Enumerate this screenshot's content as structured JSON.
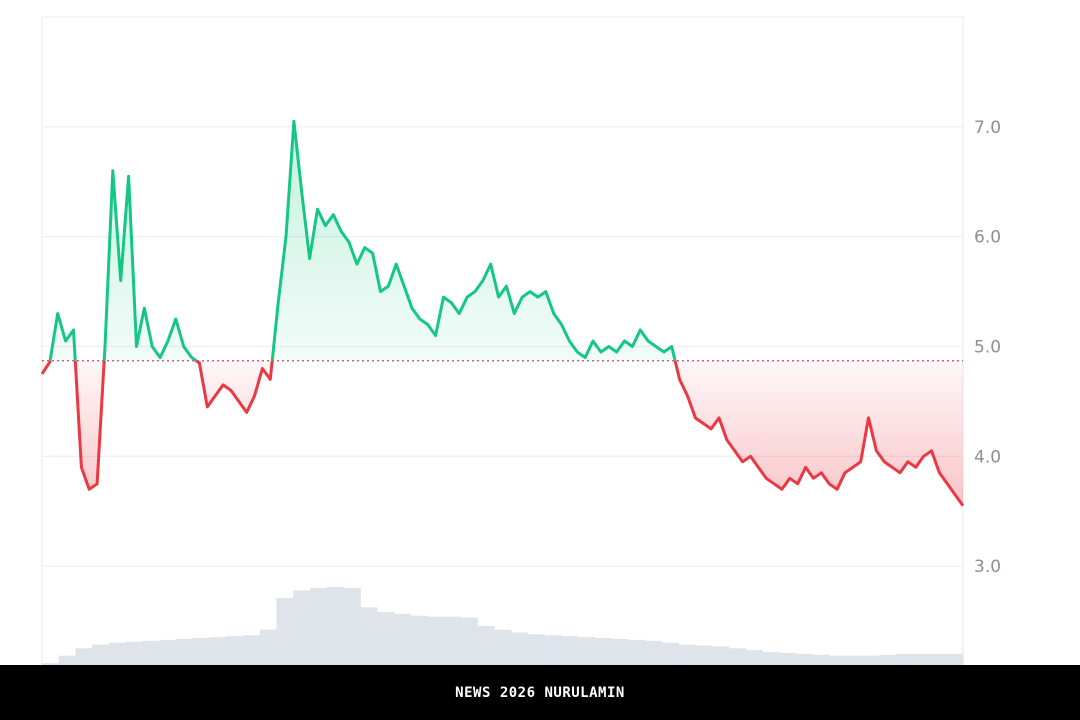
{
  "chart_data": {
    "type": "line",
    "baseline": 4.87,
    "y_axis": {
      "position": "right",
      "ticks": [
        7.0,
        6.0,
        5.0,
        4.0,
        3.0
      ],
      "tick_labels": [
        "7.0",
        "6.0",
        "5.0",
        "4.0",
        "3.0"
      ],
      "range": [
        2.1,
        8.0
      ]
    },
    "grid": true,
    "series": [
      {
        "values": [
          4.75,
          4.86,
          5.3,
          5.05,
          5.15,
          3.9,
          3.7,
          3.75,
          5.0,
          6.6,
          5.6,
          6.55,
          5.0,
          5.35,
          5.0,
          4.9,
          5.05,
          5.25,
          5.0,
          4.9,
          4.85,
          4.45,
          4.55,
          4.65,
          4.6,
          4.5,
          4.4,
          4.55,
          4.8,
          4.7,
          5.4,
          6.0,
          7.05,
          6.4,
          5.8,
          6.25,
          6.1,
          6.2,
          6.05,
          5.95,
          5.75,
          5.9,
          5.85,
          5.5,
          5.55,
          5.75,
          5.55,
          5.35,
          5.25,
          5.2,
          5.1,
          5.45,
          5.4,
          5.3,
          5.45,
          5.5,
          5.6,
          5.75,
          5.45,
          5.55,
          5.3,
          5.45,
          5.5,
          5.45,
          5.5,
          5.3,
          5.2,
          5.05,
          4.95,
          4.9,
          5.05,
          4.95,
          5.0,
          4.95,
          5.05,
          5.0,
          5.15,
          5.05,
          5.0,
          4.95,
          5.0,
          4.7,
          4.55,
          4.35,
          4.3,
          4.25,
          4.35,
          4.15,
          4.05,
          3.95,
          4.0,
          3.9,
          3.8,
          3.75,
          3.7,
          3.8,
          3.75,
          3.9,
          3.8,
          3.85,
          3.75,
          3.7,
          3.85,
          3.9,
          3.95,
          4.35,
          4.05,
          3.95,
          3.9,
          3.85,
          3.95,
          3.9,
          4.0,
          4.05,
          3.85,
          3.75,
          3.65,
          3.55
        ]
      }
    ],
    "volume": {
      "values": [
        0.02,
        0.1,
        0.18,
        0.22,
        0.24,
        0.25,
        0.26,
        0.27,
        0.28,
        0.29,
        0.3,
        0.31,
        0.32,
        0.38,
        0.72,
        0.8,
        0.83,
        0.84,
        0.83,
        0.62,
        0.57,
        0.55,
        0.53,
        0.52,
        0.52,
        0.51,
        0.42,
        0.38,
        0.35,
        0.33,
        0.32,
        0.31,
        0.3,
        0.29,
        0.28,
        0.27,
        0.26,
        0.24,
        0.22,
        0.21,
        0.2,
        0.18,
        0.16,
        0.14,
        0.13,
        0.12,
        0.11,
        0.1,
        0.1,
        0.1,
        0.11,
        0.12,
        0.12,
        0.12,
        0.12
      ]
    }
  },
  "footer": {
    "text": "NEWS 2026 NURULAMIN"
  },
  "colors": {
    "up_line": "#16c784",
    "down_line": "#ea3943",
    "up_fill": "#16c784",
    "down_fill": "#ea3943",
    "grid": "#eef0f3",
    "baseline": "#c94a55",
    "volume": "#dfe3ea",
    "footer_bg": "#000000",
    "footer_text": "#ffffff"
  }
}
